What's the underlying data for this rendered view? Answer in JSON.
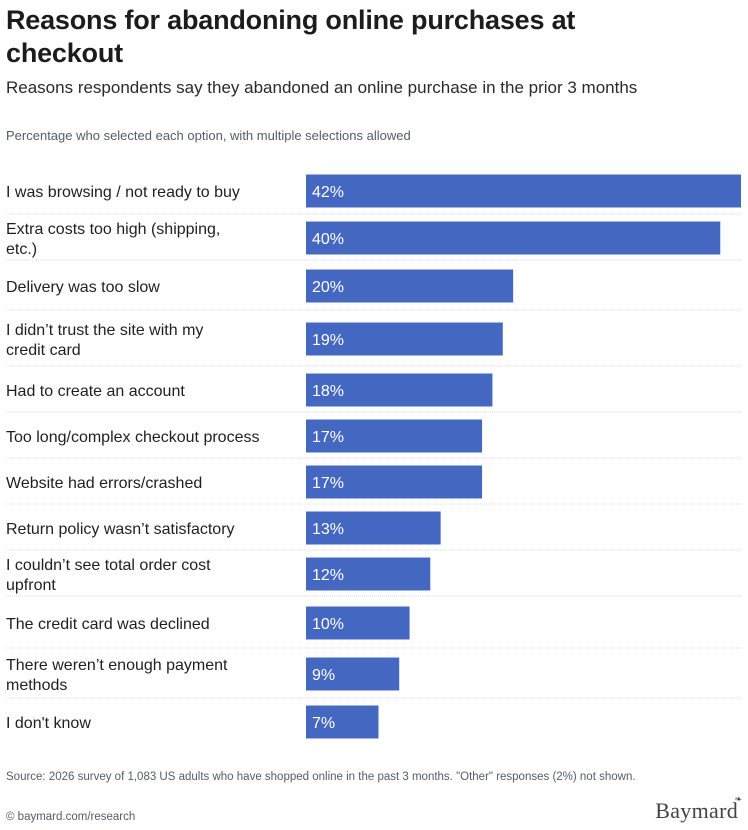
{
  "header": {
    "title": "Reasons for abandoning online purchases at checkout",
    "subtitle": "Reasons respondents say they abandoned an online purchase in the prior 3 months",
    "note": "Percentage who selected each option, with multiple selections allowed"
  },
  "footer": {
    "source": "Source: 2026 survey of 1,083 US adults who have shopped online in the past 3 months. \"Other\" responses (2%) not shown.",
    "website": "© baymard.com/research",
    "brand": "Baymard",
    "brand_mark": "❧"
  },
  "colors": {
    "bar": "#4468c1",
    "divider": "#dcdcdc"
  },
  "chart_data": {
    "type": "bar",
    "orientation": "horizontal",
    "categories": [
      "I was browsing / not ready to buy",
      "Extra costs too high (shipping, etc.)",
      "Delivery was too slow",
      "I didn’t trust the site with my credit card",
      "Had to create an account",
      "Too long/complex checkout process",
      "Website had errors/crashed",
      "Return policy wasn’t satisfactory",
      "I couldn’t see total order cost upfront",
      "The credit card was declined",
      "There weren’t enough payment methods",
      "I don't know"
    ],
    "values": [
      42,
      40,
      20,
      19,
      18,
      17,
      17,
      13,
      12,
      10,
      9,
      7
    ],
    "value_labels": [
      "42%",
      "40%",
      "20%",
      "19%",
      "18%",
      "17%",
      "17%",
      "13%",
      "12%",
      "10%",
      "9%",
      "7%"
    ],
    "unit": "%",
    "xlim": [
      0,
      42
    ]
  }
}
